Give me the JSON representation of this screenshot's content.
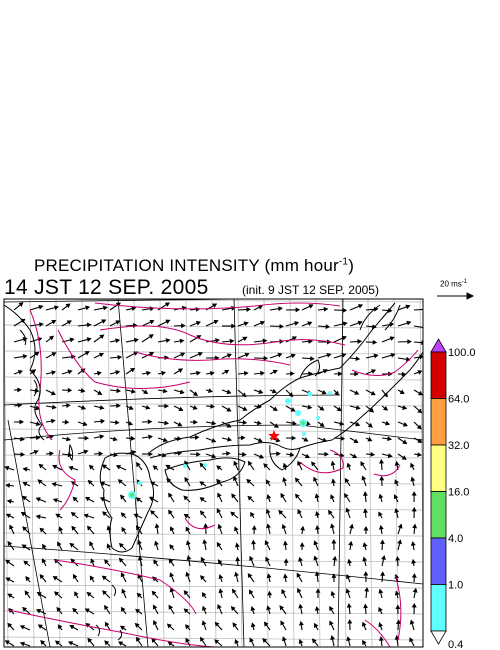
{
  "title": {
    "text": "PRECIPITATION INTENSITY (mm hour",
    "exponent": "-1",
    "close": ")"
  },
  "datetime": "14 JST 12 SEP. 2005",
  "init_text": "(init. 9 JST 12 SEP. 2005)",
  "wind_scale": {
    "label": "20 ms",
    "exponent": "-1"
  },
  "colorbar": {
    "levels": [
      "100.0",
      "64.0",
      "32.0",
      "16.0",
      "4.0",
      "1.0",
      "0.4"
    ],
    "colors": [
      "#d40000",
      "#ffa040",
      "#ffff80",
      "#60e060",
      "#6060ff",
      "#60ffff"
    ],
    "over_color": "#c040ff",
    "under_color": "#ffffff"
  },
  "markers": {
    "location_star_color": "#ff0000"
  },
  "colors": {
    "contour": "#c8006e",
    "grid": "#b4b4b4",
    "coast": "#000000"
  }
}
